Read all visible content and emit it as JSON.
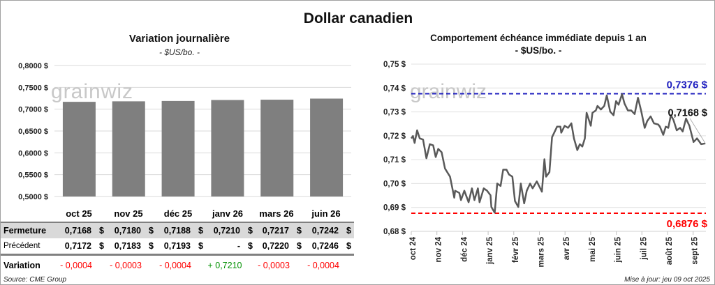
{
  "title": "Dollar canadien",
  "watermark": "grainwiz",
  "colors": {
    "bar": "#7f7f7f",
    "line": "#595959",
    "max": "#1f1fbf",
    "min": "#ff0000",
    "neg": "#ff0000",
    "pos": "#009000",
    "row_shade": "#d9d9d9"
  },
  "chart_data": [
    {
      "type": "bar",
      "title": "Variation  journalière",
      "subtitle": "- $US/bo. -",
      "categories": [
        "oct 25",
        "nov 25",
        "déc 25",
        "janv 26",
        "mars 26",
        "juin 26"
      ],
      "values": [
        0.7168,
        0.718,
        0.7188,
        0.721,
        0.7217,
        0.7242
      ],
      "ylim": [
        0.5,
        0.8
      ],
      "yticks": [
        "0,5000 $",
        "0,5500 $",
        "0,6000 $",
        "0,6500 $",
        "0,7000 $",
        "0,7500 $",
        "0,8000 $"
      ],
      "grid": true
    },
    {
      "type": "line",
      "title": "Comportement échéance immédiate depuis 1 an",
      "subtitle": "- $US/bo. -",
      "ylim": [
        0.68,
        0.75
      ],
      "yticks": [
        "0,68 $",
        "0,69 $",
        "0,70 $",
        "0,71 $",
        "0,72 $",
        "0,73 $",
        "0,74 $",
        "0,75 $"
      ],
      "xticks": [
        "oct 24",
        "nov 24",
        "déc 24",
        "janv 25",
        "févr 25",
        "mars 25",
        "avr 25",
        "mai 25",
        "juin 25",
        "juil 25",
        "août 25",
        "sept 25"
      ],
      "grid": true,
      "max": {
        "value": 0.7376,
        "label": "0,7376 $"
      },
      "min": {
        "value": 0.6876,
        "label": "0,6876 $"
      },
      "last": {
        "value": 0.7168,
        "label": "0,7168 $"
      },
      "points": [
        [
          "2024-10-01",
          0.7189
        ],
        [
          "2024-10-03",
          0.7199
        ],
        [
          "2024-10-05",
          0.717
        ],
        [
          "2024-10-08",
          0.7223
        ],
        [
          "2024-10-11",
          0.7189
        ],
        [
          "2024-10-15",
          0.7184
        ],
        [
          "2024-10-19",
          0.7106
        ],
        [
          "2024-10-23",
          0.7165
        ],
        [
          "2024-10-27",
          0.716
        ],
        [
          "2024-10-30",
          0.7111
        ],
        [
          "2024-11-02",
          0.7145
        ],
        [
          "2024-11-06",
          0.7131
        ],
        [
          "2024-11-10",
          0.7063
        ],
        [
          "2024-11-16",
          0.7029
        ],
        [
          "2024-11-21",
          0.6941
        ],
        [
          "2024-11-22",
          0.697
        ],
        [
          "2024-11-27",
          0.6961
        ],
        [
          "2024-11-29",
          0.6931
        ],
        [
          "2024-12-03",
          0.697
        ],
        [
          "2024-12-08",
          0.6922
        ],
        [
          "2024-12-12",
          0.698
        ],
        [
          "2024-12-15",
          0.6931
        ],
        [
          "2024-12-19",
          0.698
        ],
        [
          "2024-12-21",
          0.6922
        ],
        [
          "2024-12-26",
          0.698
        ],
        [
          "2024-12-30",
          0.697
        ],
        [
          "2025-01-03",
          0.6951
        ],
        [
          "2025-01-04",
          0.6902
        ],
        [
          "2025-01-08",
          0.6878
        ],
        [
          "2025-01-11",
          0.7
        ],
        [
          "2025-01-15",
          0.699
        ],
        [
          "2025-01-18",
          0.7058
        ],
        [
          "2025-01-22",
          0.7058
        ],
        [
          "2025-01-25",
          0.7038
        ],
        [
          "2025-01-29",
          0.7029
        ],
        [
          "2025-02-01",
          0.6927
        ],
        [
          "2025-02-05",
          0.6902
        ],
        [
          "2025-02-08",
          0.7
        ],
        [
          "2025-02-12",
          0.6917
        ],
        [
          "2025-02-15",
          0.697
        ],
        [
          "2025-02-19",
          0.7
        ],
        [
          "2025-02-22",
          0.698
        ],
        [
          "2025-02-27",
          0.7009
        ],
        [
          "2025-03-05",
          0.6966
        ],
        [
          "2025-03-08",
          0.7102
        ],
        [
          "2025-03-10",
          0.7029
        ],
        [
          "2025-03-14",
          0.7048
        ],
        [
          "2025-03-17",
          0.7194
        ],
        [
          "2025-03-23",
          0.7238
        ],
        [
          "2025-03-27",
          0.7238
        ],
        [
          "2025-03-28",
          0.7213
        ],
        [
          "2025-04-01",
          0.7242
        ],
        [
          "2025-04-05",
          0.7233
        ],
        [
          "2025-04-09",
          0.7252
        ],
        [
          "2025-04-12",
          0.7189
        ],
        [
          "2025-04-16",
          0.714
        ],
        [
          "2025-04-19",
          0.7165
        ],
        [
          "2025-04-22",
          0.7155
        ],
        [
          "2025-04-25",
          0.7189
        ],
        [
          "2025-04-27",
          0.7296
        ],
        [
          "2025-05-02",
          0.7242
        ],
        [
          "2025-05-04",
          0.7296
        ],
        [
          "2025-05-08",
          0.7306
        ],
        [
          "2025-05-10",
          0.7325
        ],
        [
          "2025-05-14",
          0.731
        ],
        [
          "2025-05-18",
          0.7325
        ],
        [
          "2025-05-21",
          0.7369
        ],
        [
          "2025-05-25",
          0.7301
        ],
        [
          "2025-05-29",
          0.7286
        ],
        [
          "2025-06-01",
          0.7345
        ],
        [
          "2025-06-04",
          0.733
        ],
        [
          "2025-06-08",
          0.7374
        ],
        [
          "2025-06-11",
          0.7335
        ],
        [
          "2025-06-15",
          0.7306
        ],
        [
          "2025-06-19",
          0.7306
        ],
        [
          "2025-06-23",
          0.7291
        ],
        [
          "2025-06-27",
          0.7359
        ],
        [
          "2025-07-01",
          0.7301
        ],
        [
          "2025-07-05",
          0.7233
        ],
        [
          "2025-07-08",
          0.7262
        ],
        [
          "2025-07-12",
          0.7281
        ],
        [
          "2025-07-16",
          0.7252
        ],
        [
          "2025-07-21",
          0.7247
        ],
        [
          "2025-07-23",
          0.7238
        ],
        [
          "2025-07-27",
          0.7204
        ],
        [
          "2025-07-30",
          0.7238
        ],
        [
          "2025-08-02",
          0.7233
        ],
        [
          "2025-08-05",
          0.7286
        ],
        [
          "2025-08-08",
          0.7267
        ],
        [
          "2025-08-12",
          0.7223
        ],
        [
          "2025-08-16",
          0.7233
        ],
        [
          "2025-08-19",
          0.7218
        ],
        [
          "2025-08-23",
          0.7272
        ],
        [
          "2025-08-27",
          0.7242
        ],
        [
          "2025-09-01",
          0.7174
        ],
        [
          "2025-09-05",
          0.7189
        ],
        [
          "2025-09-10",
          0.7165
        ],
        [
          "2025-09-15",
          0.7168
        ]
      ]
    }
  ],
  "table": {
    "headers": [
      "oct 25",
      "nov 25",
      "déc 25",
      "janv 26",
      "mars 26",
      "juin 26"
    ],
    "rows": [
      {
        "label": "Fermeture",
        "values": [
          "0,7168",
          "0,7180",
          "0,7188",
          "0,7210",
          "0,7217",
          "0,7242"
        ],
        "unit": "$"
      },
      {
        "label": "Précédent",
        "values": [
          "0,7172",
          "0,7183",
          "0,7193",
          "-",
          "0,7220",
          "0,7246"
        ],
        "unit": "$"
      }
    ],
    "variation": {
      "label": "Variation",
      "values": [
        "- 0,0004",
        "- 0,0003",
        "- 0,0004",
        "+ 0,7210",
        "- 0,0003",
        "- 0,0004"
      ],
      "signs": [
        "neg",
        "neg",
        "neg",
        "pos",
        "neg",
        "neg"
      ]
    }
  },
  "footer": {
    "source": "Source: CME Group",
    "updated": "Mise à jour: jeu 09 oct 2025"
  }
}
